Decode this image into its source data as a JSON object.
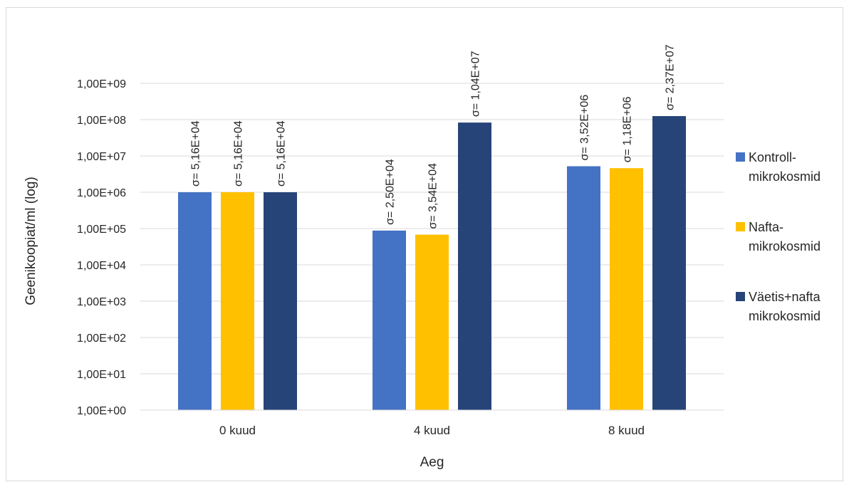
{
  "chart_data": {
    "type": "bar",
    "xlabel": "Aeg",
    "ylabel": "Geenikoopiat/ml (log)",
    "yscale": "log",
    "ylim": [
      1,
      1000000000
    ],
    "grid": true,
    "legend_position": "right",
    "categories": [
      "0 kuud",
      "4 kuud",
      "8 kuud"
    ],
    "yticks": [
      "1,00E+00",
      "1,00E+01",
      "1,00E+02",
      "1,00E+03",
      "1,00E+04",
      "1,00E+05",
      "1,00E+06",
      "1,00E+07",
      "1,00E+08",
      "1,00E+09"
    ],
    "series": [
      {
        "name_lines": [
          "Kontroll-",
          "mikrokosmid"
        ],
        "color": "#4472C4",
        "values": [
          1000000,
          88000,
          5200000
        ],
        "labels": [
          "σ= 5,16E+04",
          "σ= 2,50E+04",
          "σ= 3,52E+06"
        ]
      },
      {
        "name_lines": [
          "Nafta-",
          "mikrokosmid"
        ],
        "color": "#FFC000",
        "values": [
          1000000,
          68000,
          4600000
        ],
        "labels": [
          "σ= 5,16E+04",
          "σ= 3,54E+04",
          "σ= 1,18E+06"
        ]
      },
      {
        "name_lines": [
          "Väetis+nafta",
          "mikrokosmid"
        ],
        "color": "#264478",
        "values": [
          1000000,
          83000000,
          125000000
        ],
        "labels": [
          "σ= 5,16E+04",
          "σ= 1,04E+07",
          "σ= 2,37E+07"
        ]
      }
    ]
  }
}
